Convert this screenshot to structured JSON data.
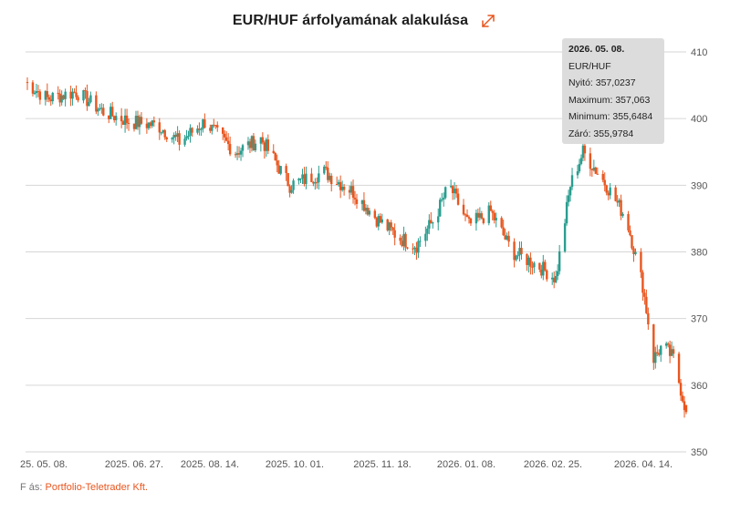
{
  "header": {
    "title": "EUR/HUF árfolyamának alakulása",
    "expand_icon": "expand-diagonal-icon",
    "accent_color": "#e8561f"
  },
  "tooltip": {
    "date": "2026. 05. 08.",
    "pair": "EUR/HUF",
    "open": "Nyitó: 357,0237",
    "high": "Maximum: 357,063",
    "low": "Minimum: 355,6484",
    "close": "Záró: 355,9784"
  },
  "source": {
    "label": "F​ ás:",
    "link": "Portfolio-Teletrader Kft."
  },
  "chart_data": {
    "type": "candlestick",
    "title": "EUR/HUF árfolyamának alakulása",
    "x_tick_labels": [
      "25. 05. 08.",
      "2025. 06. 27.",
      "2025. 08. 14.",
      "2025. 10. 01.",
      "2025. 11. 18.",
      "2026. 01. 08.",
      "2026. 02. 25.",
      "2026. 04. 14."
    ],
    "x_range": [
      "2025-05-08",
      "2026-05-08"
    ],
    "ylim": [
      350,
      410
    ],
    "y_ticks": [
      350,
      360,
      370,
      380,
      390,
      400,
      410
    ],
    "y_axis_side": "right",
    "grid": "horizontal",
    "up_color": "#2a9d8f",
    "down_color": "#e8561f",
    "series": [
      {
        "name": "EUR/HUF",
        "anchor_closes": [
          [
            "2025-05-08",
            405.5
          ],
          [
            "2025-05-20",
            403.0
          ],
          [
            "2025-06-05",
            404.0
          ],
          [
            "2025-06-20",
            401.0
          ],
          [
            "2025-07-05",
            399.5
          ],
          [
            "2025-07-20",
            399.0
          ],
          [
            "2025-08-01",
            396.5
          ],
          [
            "2025-08-15",
            399.5
          ],
          [
            "2025-09-01",
            395.0
          ],
          [
            "2025-09-15",
            397.0
          ],
          [
            "2025-10-01",
            390.0
          ],
          [
            "2025-10-20",
            392.0
          ],
          [
            "2025-11-05",
            389.0
          ],
          [
            "2025-11-18",
            385.0
          ],
          [
            "2025-12-01",
            382.0
          ],
          [
            "2025-12-10",
            381.0
          ],
          [
            "2025-12-20",
            385.0
          ],
          [
            "2025-12-28",
            390.0
          ],
          [
            "2026-01-08",
            384.0
          ],
          [
            "2026-01-20",
            386.0
          ],
          [
            "2026-02-01",
            380.0
          ],
          [
            "2026-02-15",
            378.0
          ],
          [
            "2026-02-25",
            376.0
          ],
          [
            "2026-03-05",
            390.0
          ],
          [
            "2026-03-12",
            395.0
          ],
          [
            "2026-03-25",
            390.0
          ],
          [
            "2026-04-05",
            385.0
          ],
          [
            "2026-04-14",
            375.0
          ],
          [
            "2026-04-20",
            364.0
          ],
          [
            "2026-04-25",
            366.0
          ],
          [
            "2026-05-01",
            364.0
          ],
          [
            "2026-05-08",
            356.0
          ]
        ],
        "last_candle": {
          "date": "2026-05-08",
          "open": 357.0237,
          "high": 357.063,
          "low": 355.6484,
          "close": 355.9784
        }
      }
    ]
  }
}
